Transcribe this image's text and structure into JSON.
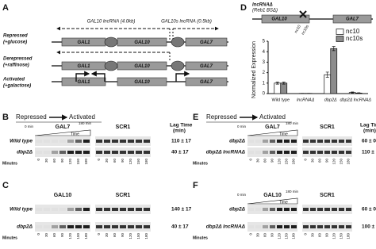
{
  "panel_a": {
    "label": "A",
    "transcripts": [
      "GAL10 lncRNA (4.0kb)",
      "GAL10s lncRNA (0.5kb)"
    ],
    "genes": [
      "GAL1",
      "GAL10",
      "GAL7"
    ],
    "conditions": [
      [
        "Repressed",
        "(+glucose)"
      ],
      [
        "Derepressed",
        "(+raffinose)"
      ],
      [
        "Activated",
        "(+galactose)"
      ]
    ]
  },
  "chart_data": {
    "type": "bar",
    "label": "D",
    "diagram_title": [
      "lncRNAΔ",
      "(Reb1 BSΔ)"
    ],
    "diagram_genes": [
      "GAL10",
      "GAL7"
    ],
    "diagram_sites": [
      "nc10",
      "nc10s"
    ],
    "y_label": "Normalized Expression",
    "categories": [
      "Wild type",
      "lncRNAΔ",
      "dbp2Δ",
      "dbp2Δ lncRNAΔ"
    ],
    "series": [
      {
        "name": "nc10",
        "color": "#ffffff",
        "values": [
          1.0,
          0.02,
          1.8,
          0.1
        ],
        "errors": [
          0.1,
          0.0,
          0.25,
          0.05
        ]
      },
      {
        "name": "nc10s",
        "color": "#8c8c8c",
        "values": [
          1.0,
          0.02,
          4.3,
          0.05
        ],
        "errors": [
          0.1,
          0.0,
          0.2,
          0.03
        ]
      }
    ],
    "ylim": [
      0,
      5
    ],
    "yticks": [
      0,
      1,
      2,
      3,
      4,
      5
    ],
    "legend": "upper right"
  },
  "gels": [
    {
      "label": "B",
      "left_title": "Repressed",
      "right_title": "Activated",
      "genes": [
        "GAL7",
        "SCR1"
      ],
      "time_start": "0 min",
      "time_end": "180 min",
      "time_label": "Time",
      "lag_header": [
        "Lag Time",
        "(min)"
      ],
      "rows": [
        {
          "name": "Wild type",
          "lag": "110 ± 17"
        },
        {
          "name": "dbp2Δ",
          "lag": "40 ± 17"
        }
      ],
      "minutes_label": "Minutes",
      "lanes": [
        "0",
        "30",
        "60",
        "90",
        "120",
        "150",
        "180"
      ]
    },
    {
      "label": "C",
      "genes": [
        "GAL10",
        "SCR1"
      ],
      "rows": [
        {
          "name": "Wild type",
          "lag": "140 ± 17"
        },
        {
          "name": "dbp2Δ",
          "lag": "40 ± 17"
        }
      ],
      "minutes_label": "Minutes",
      "lanes": [
        "0",
        "30",
        "60",
        "90",
        "120",
        "150",
        "180"
      ]
    },
    {
      "label": "E",
      "left_title": "Repressed",
      "right_title": "Activated",
      "genes": [
        "GAL7",
        "SCR1"
      ],
      "time_start": "0 min",
      "time_end": "180 min",
      "time_label": "Time",
      "lag_header": [
        "Lag Time",
        "(min)"
      ],
      "rows": [
        {
          "name": "dbp2Δ",
          "lag": "60 ± 0"
        },
        {
          "name": "dbp2Δ lncRNAΔ",
          "lag": "110 ± 17"
        }
      ],
      "minutes_label": "Minutes",
      "lanes": [
        "0",
        "30",
        "60",
        "90",
        "120",
        "150",
        "180"
      ]
    },
    {
      "label": "F",
      "genes": [
        "GAL10",
        "SCR1"
      ],
      "time_start": "0 min",
      "time_end": "180 min",
      "time_label": "Time",
      "rows": [
        {
          "name": "dbp2Δ",
          "lag": "60 ± 0"
        },
        {
          "name": "dbp2Δ lncRNAΔ",
          "lag": "100 ± 17"
        }
      ],
      "minutes_label": "Minutes",
      "lanes": [
        "0",
        "30",
        "60",
        "90",
        "120",
        "150",
        "180"
      ]
    }
  ]
}
